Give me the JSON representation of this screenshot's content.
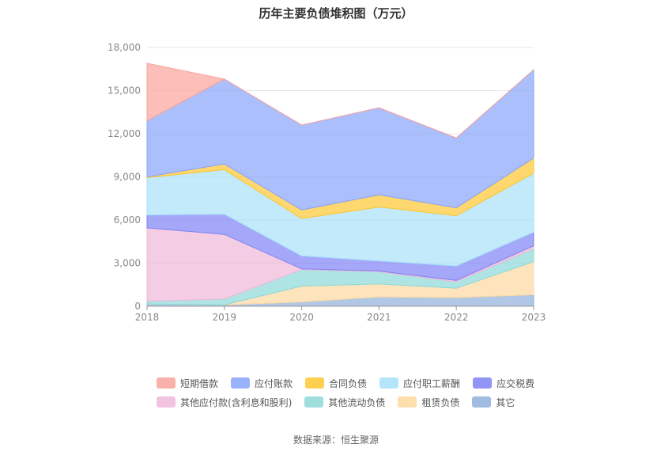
{
  "title": "历年主要负债堆积图（万元）",
  "source": "数据来源：恒生聚源",
  "chart_data": {
    "type": "area",
    "stacked": true,
    "x": [
      "2018",
      "2019",
      "2020",
      "2021",
      "2022",
      "2023"
    ],
    "ylim": [
      0,
      18000
    ],
    "yticks": [
      "0",
      "3,000",
      "6,000",
      "9,000",
      "12,000",
      "15,000",
      "18,000"
    ],
    "grid": true,
    "legend_position": "bottom",
    "series": [
      {
        "name": "其它",
        "color": "#8fb0dc",
        "values": [
          150,
          100,
          300,
          650,
          600,
          800
        ]
      },
      {
        "name": "租赁负债",
        "color": "#fdd9a0",
        "values": [
          0,
          0,
          1100,
          900,
          650,
          2300
        ]
      },
      {
        "name": "其他流动负债",
        "color": "#8dd9d8",
        "values": [
          200,
          400,
          1150,
          850,
          450,
          900
        ]
      },
      {
        "name": "其他应付款(含利息和股利)",
        "color": "#efb8d9",
        "values": [
          5100,
          4500,
          50,
          50,
          100,
          200
        ]
      },
      {
        "name": "应交税费",
        "color": "#7f83f5",
        "values": [
          900,
          1400,
          900,
          700,
          1000,
          950
        ]
      },
      {
        "name": "应付职工薪酬",
        "color": "#a8e1fa",
        "values": [
          2600,
          3100,
          2600,
          3750,
          3500,
          4100
        ]
      },
      {
        "name": "合同负债",
        "color": "#fec731",
        "values": [
          50,
          400,
          600,
          850,
          550,
          1050
        ]
      },
      {
        "name": "应付账款",
        "color": "#88a4fc",
        "values": [
          3900,
          5900,
          5900,
          6050,
          4850,
          6150
        ]
      },
      {
        "name": "短期借款",
        "color": "#f9a39a",
        "values": [
          4000,
          0,
          0,
          0,
          0,
          0
        ]
      }
    ]
  },
  "legend_order": [
    [
      "短期借款",
      "应付账款",
      "合同负债",
      "应付职工薪酬",
      "应交税费"
    ],
    [
      "其他应付款(含利息和股利)",
      "其他流动负债",
      "租赁负债",
      "其它"
    ]
  ]
}
